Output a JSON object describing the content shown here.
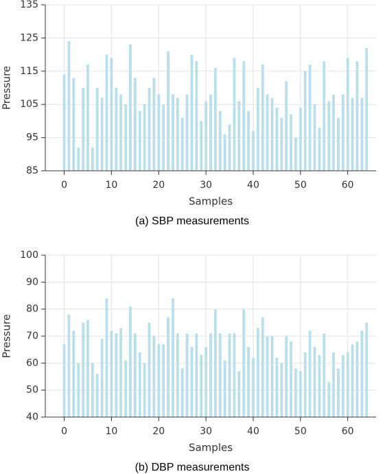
{
  "chart_data": [
    {
      "type": "bar",
      "xlabel": "Samples",
      "ylabel": "Pressure",
      "caption": "(a) SBP measurements",
      "color": "#b9dfea",
      "grid": true,
      "x": [
        0,
        1,
        2,
        3,
        4,
        5,
        6,
        7,
        8,
        9,
        10,
        11,
        12,
        13,
        14,
        15,
        16,
        17,
        18,
        19,
        20,
        21,
        22,
        23,
        24,
        25,
        26,
        27,
        28,
        29,
        30,
        31,
        32,
        33,
        34,
        35,
        36,
        37,
        38,
        39,
        40,
        41,
        42,
        43,
        44,
        45,
        46,
        47,
        48,
        49,
        50,
        51,
        52,
        53,
        54,
        55,
        56,
        57,
        58,
        59,
        60,
        61,
        62,
        63,
        64
      ],
      "values": [
        114,
        124,
        113,
        92,
        110,
        117,
        92,
        110,
        107,
        120,
        119,
        110,
        108,
        105,
        123,
        113,
        103,
        105,
        110,
        113,
        108,
        105,
        121,
        108,
        107,
        101,
        108,
        120,
        118,
        100,
        106,
        108,
        116,
        103,
        96,
        99,
        119,
        106,
        118,
        103,
        97,
        110,
        117,
        108,
        107,
        104,
        101,
        112,
        102,
        95,
        104,
        115,
        117,
        105,
        98,
        118,
        106,
        108,
        101,
        108,
        119,
        107,
        118,
        107,
        122
      ],
      "xlim": [
        -4,
        66
      ],
      "xticks": [
        0,
        10,
        20,
        30,
        40,
        50,
        60
      ],
      "ylim": [
        85,
        135
      ],
      "yticks": [
        85,
        95,
        105,
        115,
        125,
        135
      ]
    },
    {
      "type": "bar",
      "xlabel": "Samples",
      "ylabel": "Pressure",
      "caption": "(b) DBP measurements",
      "color": "#b9dfea",
      "grid": true,
      "x": [
        0,
        1,
        2,
        3,
        4,
        5,
        6,
        7,
        8,
        9,
        10,
        11,
        12,
        13,
        14,
        15,
        16,
        17,
        18,
        19,
        20,
        21,
        22,
        23,
        24,
        25,
        26,
        27,
        28,
        29,
        30,
        31,
        32,
        33,
        34,
        35,
        36,
        37,
        38,
        39,
        40,
        41,
        42,
        43,
        44,
        45,
        46,
        47,
        48,
        49,
        50,
        51,
        52,
        53,
        54,
        55,
        56,
        57,
        58,
        59,
        60,
        61,
        62,
        63,
        64
      ],
      "values": [
        67,
        78,
        72,
        60,
        75,
        76,
        60,
        56,
        69,
        84,
        72,
        71,
        73,
        61,
        81,
        71,
        64,
        60,
        75,
        70,
        67,
        67,
        77,
        84,
        71,
        58,
        71,
        66,
        71,
        63,
        66,
        71,
        80,
        71,
        61,
        71,
        71,
        57,
        80,
        66,
        62,
        73,
        77,
        70,
        70,
        62,
        60,
        70,
        68,
        58,
        57,
        64,
        72,
        66,
        63,
        71,
        53,
        64,
        58,
        63,
        64,
        67,
        68,
        72,
        75
      ],
      "xlim": [
        -4,
        66
      ],
      "xticks": [
        0,
        10,
        20,
        30,
        40,
        50,
        60
      ],
      "ylim": [
        40,
        100
      ],
      "yticks": [
        40,
        50,
        60,
        70,
        80,
        90,
        100
      ]
    }
  ]
}
